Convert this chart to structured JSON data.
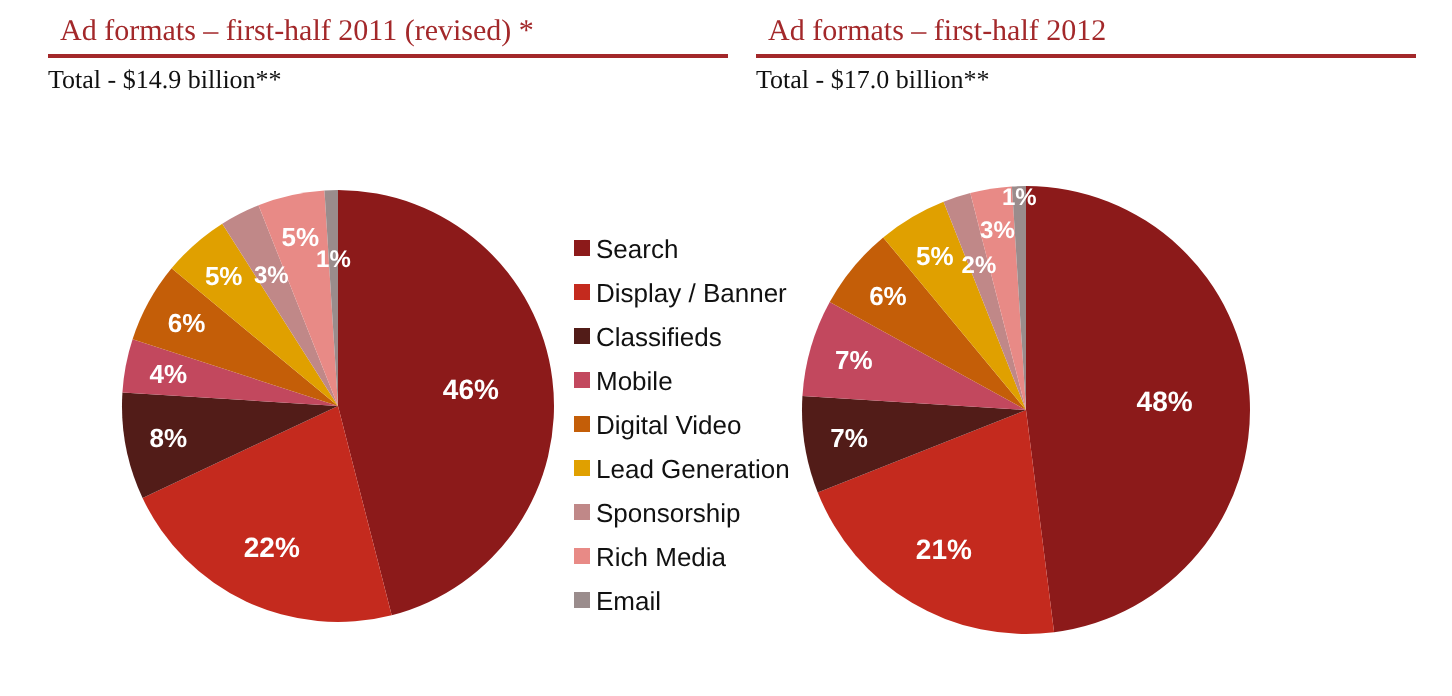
{
  "chart_data": [
    {
      "type": "pie",
      "title": "Ad formats – first-half 2011 (revised) *",
      "subtitle": "Total - $14.9 billion**",
      "categories": [
        "Search",
        "Display / Banner",
        "Classifieds",
        "Mobile",
        "Digital Video",
        "Lead Generation",
        "Sponsorship",
        "Rich Media",
        "Email"
      ],
      "values": [
        46,
        22,
        8,
        4,
        6,
        5,
        3,
        5,
        1
      ],
      "value_labels": [
        "46%",
        "22%",
        "8%",
        "4%",
        "6%",
        "5%",
        "3%",
        "5%",
        "1%"
      ],
      "colors": [
        "#8c1a1a",
        "#c42a1e",
        "#521c18",
        "#c2485e",
        "#c45e08",
        "#e0a000",
        "#c08888",
        "#e88a86",
        "#9a8c8c"
      ],
      "data_labels": true,
      "legend": "right"
    },
    {
      "type": "pie",
      "title": "Ad formats – first-half 2012",
      "subtitle": "Total - $17.0 billion**",
      "categories": [
        null,
        null,
        null,
        null,
        null,
        null,
        null,
        null,
        null
      ],
      "values": [
        48,
        21,
        7,
        7,
        6,
        5,
        2,
        3,
        1
      ],
      "value_labels": [
        "48%",
        "21%",
        "7%",
        "7%",
        "6%",
        "5%",
        "2%",
        "3%",
        "1%"
      ],
      "colors": [
        "#8c1a1a",
        "#c42a1e",
        "#521c18",
        "#c2485e",
        "#c45e08",
        "#e0a000",
        "#c08888",
        "#e88a86",
        "#9a8c8c"
      ],
      "data_labels": true
    }
  ]
}
